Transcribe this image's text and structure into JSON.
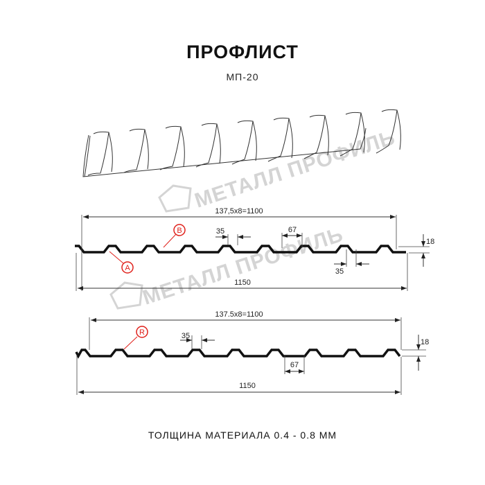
{
  "title": "ПРОФЛИСТ",
  "subtitle": "МП-20",
  "footer": "ТОЛЩИНА МАТЕРИАЛА 0.4 - 0.8 ММ",
  "watermark": "МЕТАЛЛ ПРОФИЛЬ",
  "accent_color": "#e0201a",
  "profile_a": {
    "pitch_label": "137,5x8=1100",
    "top_width": "35",
    "bottom_width": "35",
    "rib_width": "67",
    "height": "18",
    "total_width": "1150",
    "marker_b": "B",
    "marker_a": "A"
  },
  "profile_b": {
    "pitch_label": "137.5x8=1100",
    "top_width": "35",
    "rib_width": "67",
    "height": "18",
    "total_width": "1150",
    "marker_r": "R"
  }
}
